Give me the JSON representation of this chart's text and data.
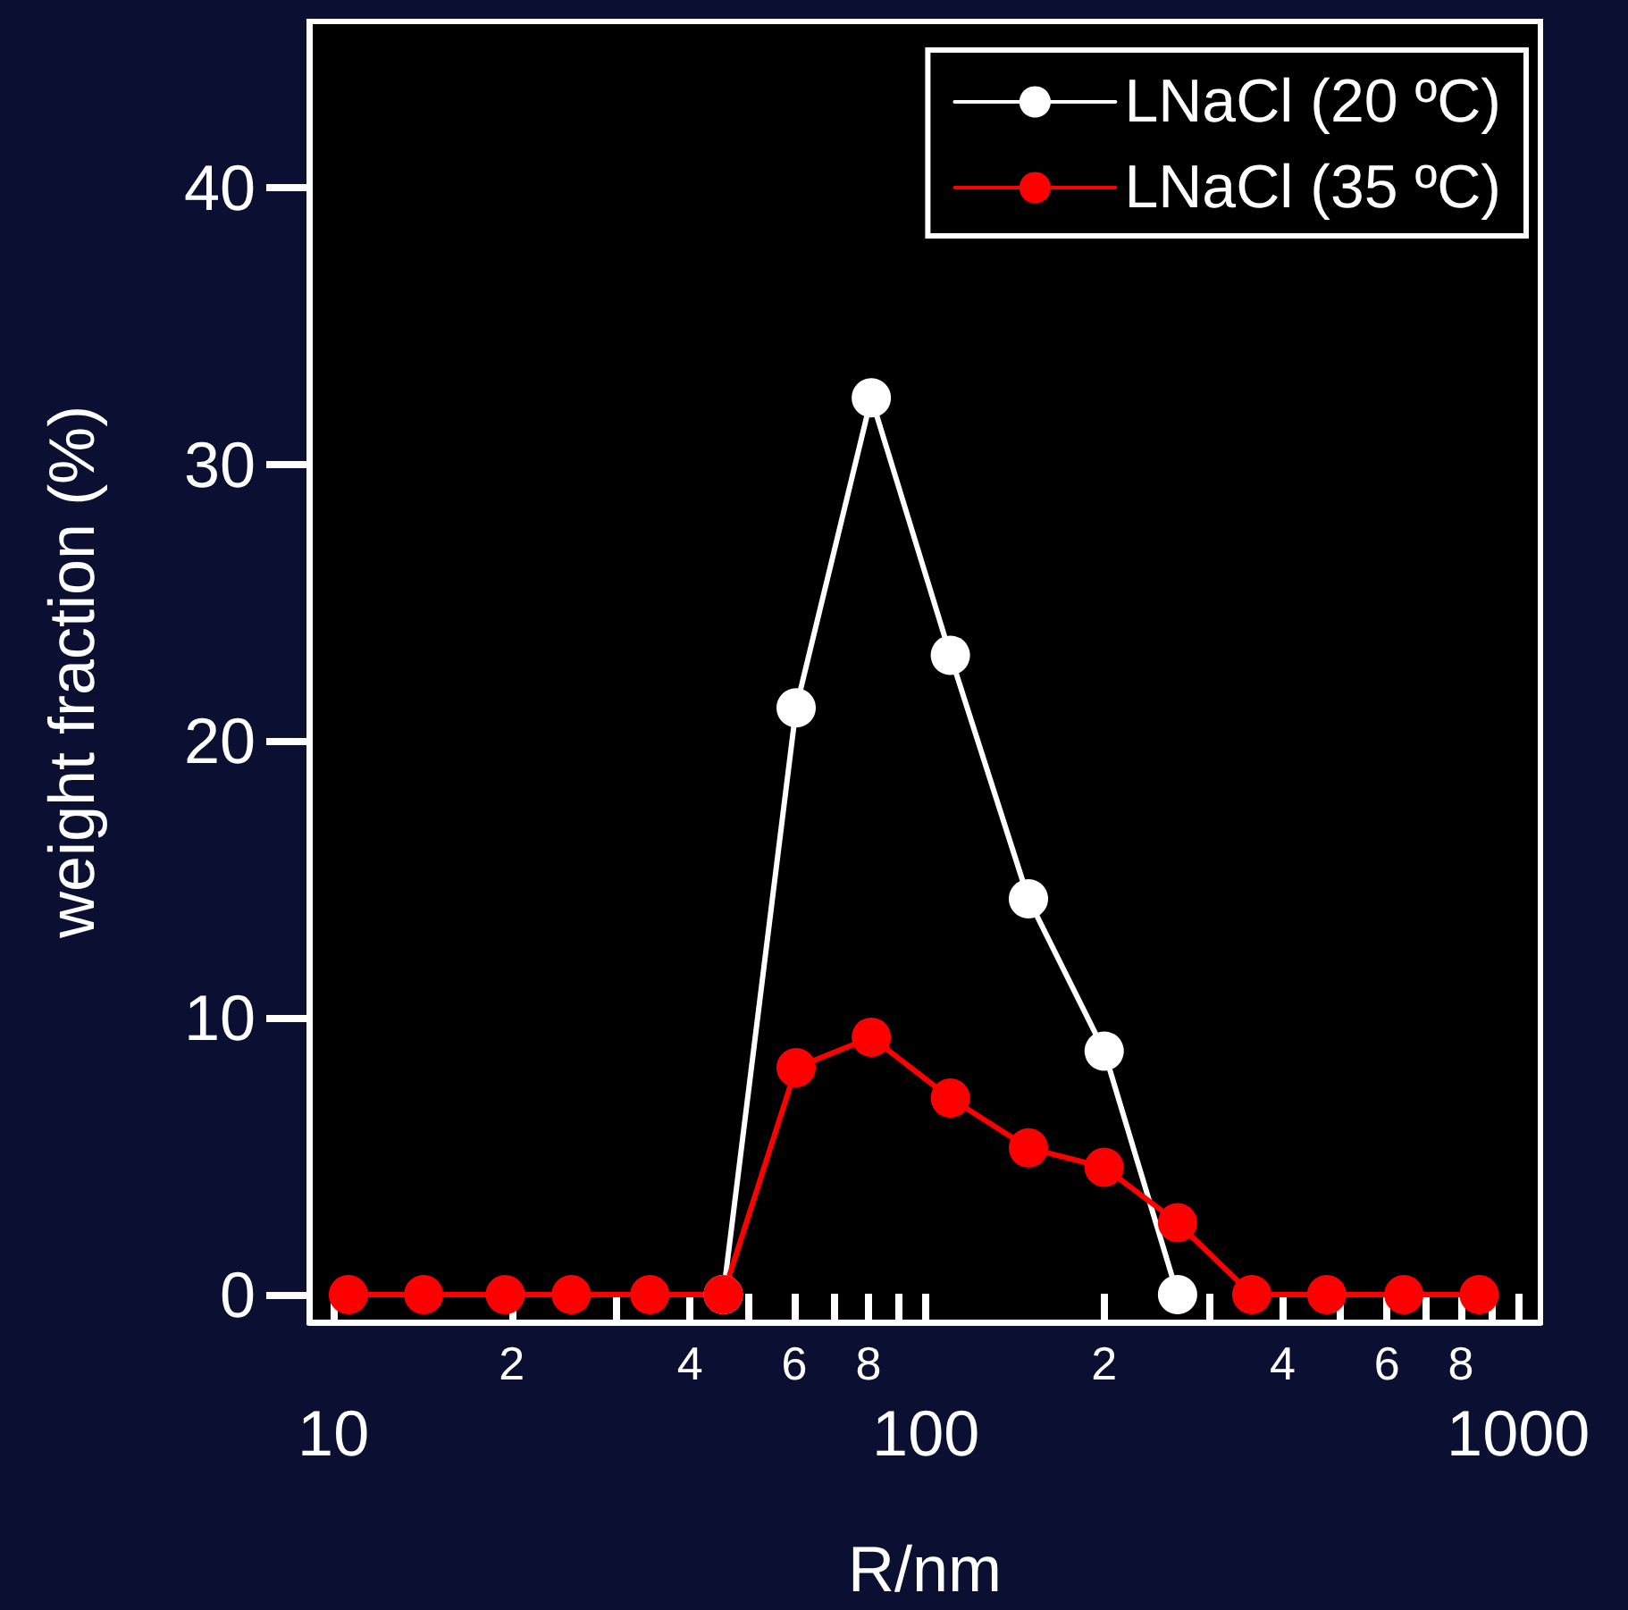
{
  "chart_data": {
    "type": "line",
    "xlabel": "R/nm",
    "ylabel": "weight fraction (%)",
    "x": [
      10.6,
      14.2,
      19.5,
      25.2,
      34.2,
      45.5,
      60.4,
      80.9,
      110,
      149,
      200,
      266,
      355,
      475,
      641,
      859
    ],
    "series": [
      {
        "name": "LNaCl (20 ºC)",
        "color": "#ffffff",
        "values": [
          null,
          null,
          null,
          null,
          null,
          0,
          21.2,
          32.4,
          23.1,
          14.3,
          8.8,
          0,
          null,
          null,
          null,
          null
        ]
      },
      {
        "name": "LNaCl (35 ºC)",
        "color": "#ff0000",
        "values": [
          0,
          0,
          0,
          0,
          0,
          0,
          8.2,
          9.3,
          7.1,
          5.3,
          4.6,
          2.6,
          0,
          0,
          0,
          0
        ]
      }
    ],
    "log": "x",
    "xlim": [
      9.1,
      1090
    ],
    "xticks": [
      10,
      {
        "value": 20,
        "label": null
      },
      {
        "value": 30,
        "label": null
      },
      {
        "value": 40,
        "label": null
      },
      {
        "value": 50,
        "label": null
      },
      {
        "value": 60,
        "label": null
      },
      {
        "value": 70,
        "label": null
      },
      {
        "value": 80,
        "label": null
      },
      {
        "value": 90,
        "label": null
      },
      100,
      {
        "value": 200,
        "label": null
      },
      {
        "value": 300,
        "label": null
      },
      {
        "value": 400,
        "label": null
      },
      {
        "value": 500,
        "label": null
      },
      {
        "value": 600,
        "label": null
      },
      {
        "value": 700,
        "label": null
      },
      {
        "value": 800,
        "label": null
      },
      {
        "value": 900,
        "label": null
      },
      1000
    ],
    "annotations": [
      "2",
      "4",
      "6",
      "8",
      "2",
      "4",
      "6",
      "8"
    ],
    "ylim": [
      -1,
      46
    ],
    "yticks": [
      0,
      10,
      20,
      30,
      40
    ],
    "grid": false,
    "legend": "top right",
    "marker": "circle",
    "line_style": "solid"
  }
}
